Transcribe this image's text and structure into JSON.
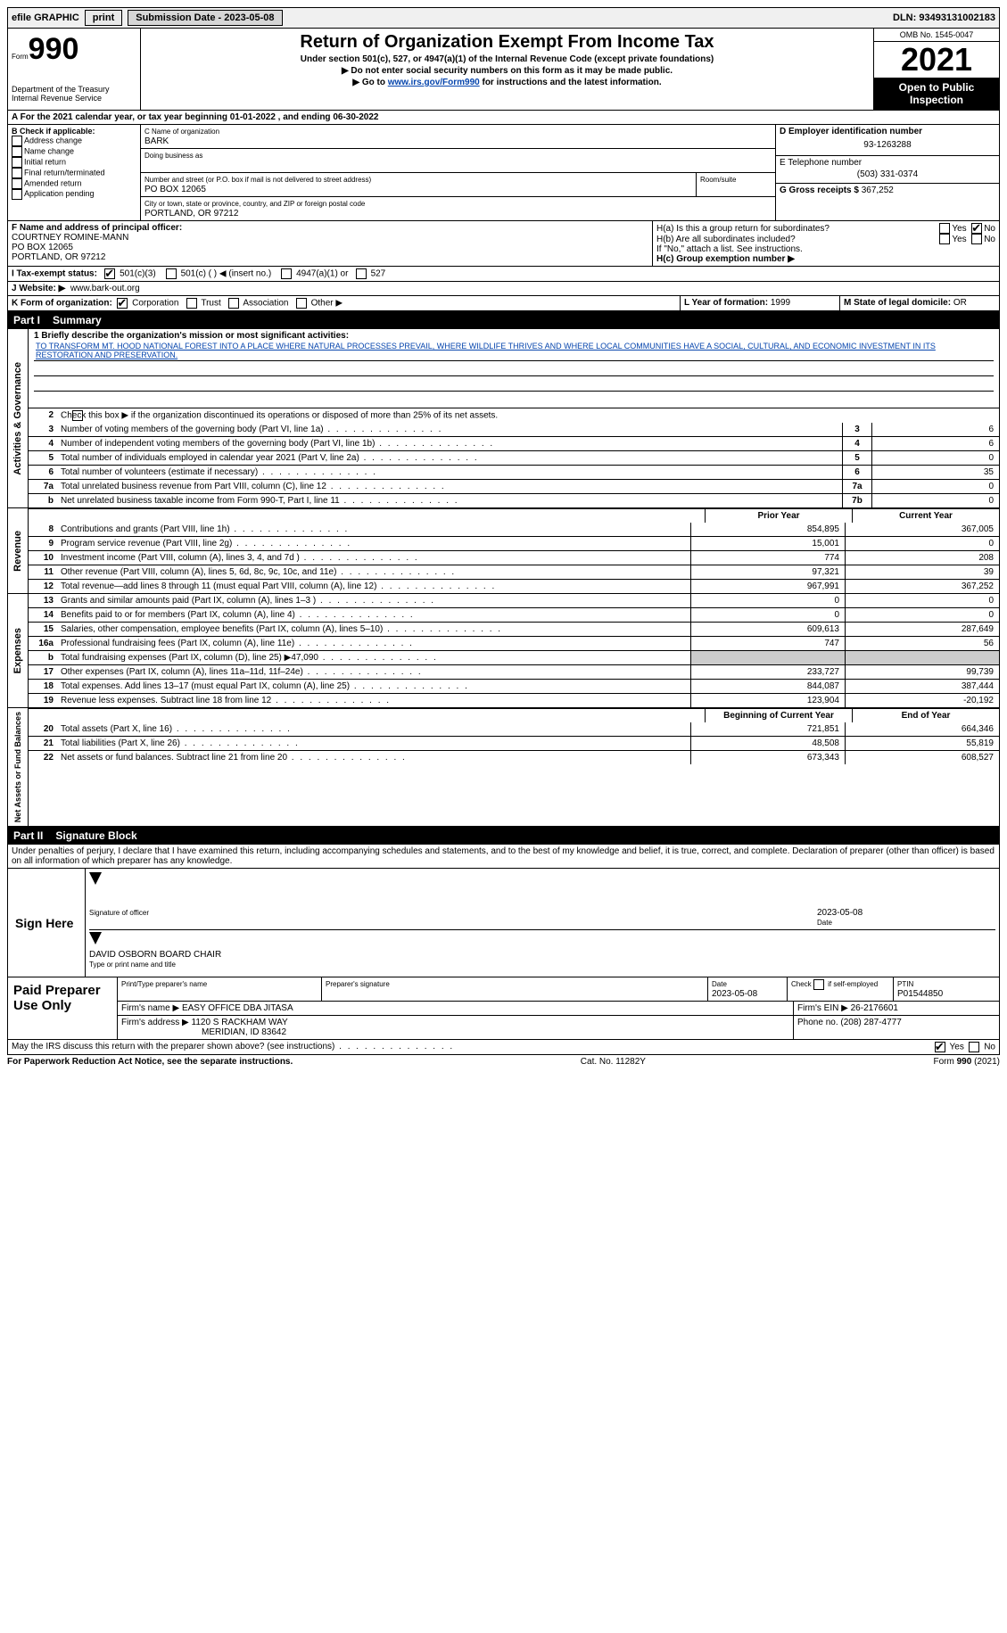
{
  "topbar": {
    "efile_label": "efile GRAPHIC",
    "print_btn": "print",
    "submission_label": "Submission Date - 2023-05-08",
    "dln_label": "DLN: 93493131002183"
  },
  "header": {
    "form_label": "Form",
    "form_number": "990",
    "dept": "Department of the Treasury\nInternal Revenue Service",
    "title": "Return of Organization Exempt From Income Tax",
    "subtitle": "Under section 501(c), 527, or 4947(a)(1) of the Internal Revenue Code (except private foundations)",
    "note1": "▶ Do not enter social security numbers on this form as it may be made public.",
    "note2": "▶ Go to www.irs.gov/Form990 for instructions and the latest information.",
    "link": "www.irs.gov/Form990",
    "omb": "OMB No. 1545-0047",
    "year": "2021",
    "open": "Open to Public Inspection"
  },
  "line_a": "A For the 2021 calendar year, or tax year beginning 01-01-2022    , and ending 06-30-2022",
  "box_b": {
    "label": "B Check if applicable:",
    "opts": [
      "Address change",
      "Name change",
      "Initial return",
      "Final return/terminated",
      "Amended return",
      "Application pending"
    ]
  },
  "box_c": {
    "label": "C Name of organization",
    "name": "BARK",
    "dba_label": "Doing business as",
    "addr_label": "Number and street (or P.O. box if mail is not delivered to street address)",
    "room_label": "Room/suite",
    "addr": "PO BOX 12065",
    "city_label": "City or town, state or province, country, and ZIP or foreign postal code",
    "city": "PORTLAND, OR  97212"
  },
  "box_d": {
    "label": "D Employer identification number",
    "value": "93-1263288"
  },
  "box_e": {
    "label": "E Telephone number",
    "value": "(503) 331-0374"
  },
  "box_g": {
    "label": "G Gross receipts $",
    "value": "367,252"
  },
  "box_f": {
    "label": "F Name and address of principal officer:",
    "name": "COURTNEY ROMINE-MANN",
    "addr1": "PO BOX 12065",
    "addr2": "PORTLAND, OR  97212"
  },
  "box_h": {
    "a": "H(a) Is this a group return for subordinates?",
    "b": "H(b) Are all subordinates included?",
    "note": "If \"No,\" attach a list. See instructions.",
    "c": "H(c) Group exemption number ▶",
    "yes": "Yes",
    "no": "No"
  },
  "box_i": {
    "label": "I  Tax-exempt status:",
    "o1": "501(c)(3)",
    "o2": "501(c) (  ) ◀ (insert no.)",
    "o3": "4947(a)(1) or",
    "o4": "527"
  },
  "box_j": {
    "label": "J  Website: ▶",
    "value": "www.bark-out.org"
  },
  "box_k": {
    "label": "K Form of organization:",
    "opts": [
      "Corporation",
      "Trust",
      "Association",
      "Other ▶"
    ]
  },
  "box_l": {
    "label": "L Year of formation:",
    "value": "1999"
  },
  "box_m": {
    "label": "M State of legal domicile:",
    "value": "OR"
  },
  "part1": {
    "header": "Part I",
    "title": "Summary",
    "l1_label": "1   Briefly describe the organization's mission or most significant activities:",
    "mission": "TO TRANSFORM MT. HOOD NATIONAL FOREST INTO A PLACE WHERE NATURAL PROCESSES PREVAIL, WHERE WILDLIFE THRIVES AND WHERE LOCAL COMMUNITIES HAVE A SOCIAL, CULTURAL, AND ECONOMIC INVESTMENT IN ITS RESTORATION AND PRESERVATION.",
    "l2": "Check this box ▶      if the organization discontinued its operations or disposed of more than 25% of its net assets.",
    "sides": {
      "gov": "Activities & Governance",
      "rev": "Revenue",
      "exp": "Expenses",
      "net": "Net Assets or Fund Balances"
    },
    "prior_year": "Prior Year",
    "current_year": "Current Year",
    "begin_year": "Beginning of Current Year",
    "end_year": "End of Year",
    "gov_lines": [
      {
        "n": "3",
        "t": "Number of voting members of the governing body (Part VI, line 1a)",
        "box": "3",
        "v": "6"
      },
      {
        "n": "4",
        "t": "Number of independent voting members of the governing body (Part VI, line 1b)",
        "box": "4",
        "v": "6"
      },
      {
        "n": "5",
        "t": "Total number of individuals employed in calendar year 2021 (Part V, line 2a)",
        "box": "5",
        "v": "0"
      },
      {
        "n": "6",
        "t": "Total number of volunteers (estimate if necessary)",
        "box": "6",
        "v": "35"
      },
      {
        "n": "7a",
        "t": "Total unrelated business revenue from Part VIII, column (C), line 12",
        "box": "7a",
        "v": "0"
      },
      {
        "n": "b",
        "t": "Net unrelated business taxable income from Form 990-T, Part I, line 11",
        "box": "7b",
        "v": "0"
      }
    ],
    "rev_lines": [
      {
        "n": "8",
        "t": "Contributions and grants (Part VIII, line 1h)",
        "py": "854,895",
        "cy": "367,005"
      },
      {
        "n": "9",
        "t": "Program service revenue (Part VIII, line 2g)",
        "py": "15,001",
        "cy": "0"
      },
      {
        "n": "10",
        "t": "Investment income (Part VIII, column (A), lines 3, 4, and 7d )",
        "py": "774",
        "cy": "208"
      },
      {
        "n": "11",
        "t": "Other revenue (Part VIII, column (A), lines 5, 6d, 8c, 9c, 10c, and 11e)",
        "py": "97,321",
        "cy": "39"
      },
      {
        "n": "12",
        "t": "Total revenue—add lines 8 through 11 (must equal Part VIII, column (A), line 12)",
        "py": "967,991",
        "cy": "367,252"
      }
    ],
    "exp_lines": [
      {
        "n": "13",
        "t": "Grants and similar amounts paid (Part IX, column (A), lines 1–3 )",
        "py": "0",
        "cy": "0"
      },
      {
        "n": "14",
        "t": "Benefits paid to or for members (Part IX, column (A), line 4)",
        "py": "0",
        "cy": "0"
      },
      {
        "n": "15",
        "t": "Salaries, other compensation, employee benefits (Part IX, column (A), lines 5–10)",
        "py": "609,613",
        "cy": "287,649"
      },
      {
        "n": "16a",
        "t": "Professional fundraising fees (Part IX, column (A), line 11e)",
        "py": "747",
        "cy": "56"
      },
      {
        "n": "b",
        "t": "Total fundraising expenses (Part IX, column (D), line 25) ▶47,090",
        "py": "",
        "cy": "",
        "shade": true
      },
      {
        "n": "17",
        "t": "Other expenses (Part IX, column (A), lines 11a–11d, 11f–24e)",
        "py": "233,727",
        "cy": "99,739"
      },
      {
        "n": "18",
        "t": "Total expenses. Add lines 13–17 (must equal Part IX, column (A), line 25)",
        "py": "844,087",
        "cy": "387,444"
      },
      {
        "n": "19",
        "t": "Revenue less expenses. Subtract line 18 from line 12",
        "py": "123,904",
        "cy": "-20,192"
      }
    ],
    "net_lines": [
      {
        "n": "20",
        "t": "Total assets (Part X, line 16)",
        "py": "721,851",
        "cy": "664,346"
      },
      {
        "n": "21",
        "t": "Total liabilities (Part X, line 26)",
        "py": "48,508",
        "cy": "55,819"
      },
      {
        "n": "22",
        "t": "Net assets or fund balances. Subtract line 21 from line 20",
        "py": "673,343",
        "cy": "608,527"
      }
    ]
  },
  "part2": {
    "header": "Part II",
    "title": "Signature Block",
    "decl": "Under penalties of perjury, I declare that I have examined this return, including accompanying schedules and statements, and to the best of my knowledge and belief, it is true, correct, and complete. Declaration of preparer (other than officer) is based on all information of which preparer has any knowledge.",
    "sign_here": "Sign Here",
    "sig_officer": "Signature of officer",
    "sig_date": "Date",
    "sig_date_val": "2023-05-08",
    "name_title": "DAVID OSBORN  BOARD CHAIR",
    "name_title_label": "Type or print name and title",
    "paid": "Paid Preparer Use Only",
    "prep_name_label": "Print/Type preparer's name",
    "prep_sig_label": "Preparer's signature",
    "date_label": "Date",
    "date_val": "2023-05-08",
    "check_label": "Check        if self-employed",
    "ptin_label": "PTIN",
    "ptin": "P01544850",
    "firm_name_label": "Firm's name     ▶",
    "firm_name": "EASY OFFICE DBA JITASA",
    "firm_ein_label": "Firm's EIN ▶",
    "firm_ein": "26-2176601",
    "firm_addr_label": "Firm's address ▶",
    "firm_addr1": "1120 S RACKHAM WAY",
    "firm_addr2": "MERIDIAN, ID  83642",
    "phone_label": "Phone no.",
    "phone": "(208) 287-4777",
    "discuss": "May the IRS discuss this return with the preparer shown above? (see instructions)"
  },
  "footer": {
    "left": "For Paperwork Reduction Act Notice, see the separate instructions.",
    "center": "Cat. No. 11282Y",
    "right": "Form 990 (2021)"
  }
}
